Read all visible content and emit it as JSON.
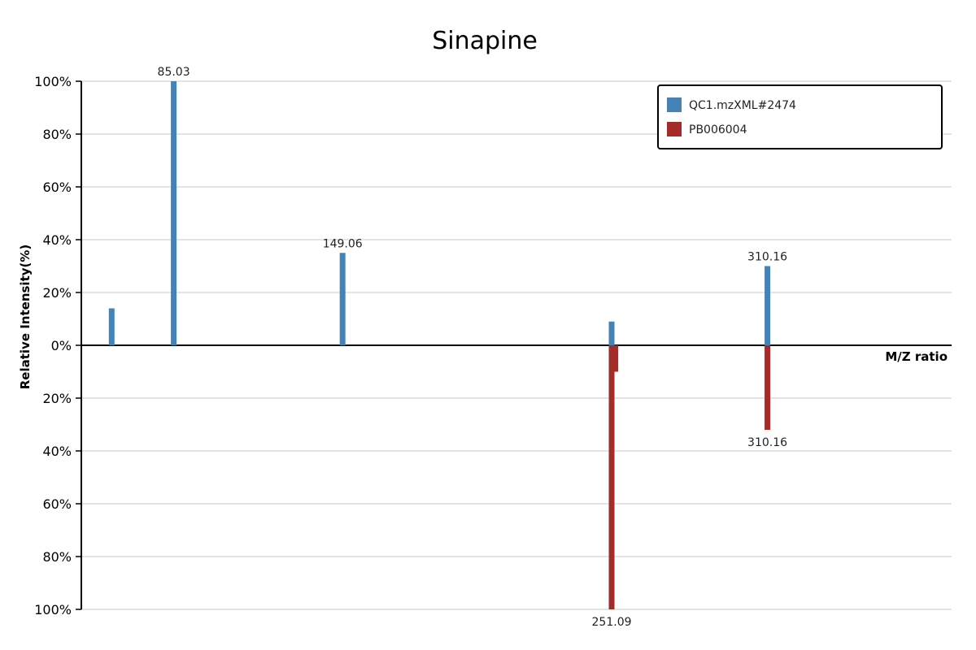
{
  "chart_data": {
    "type": "bar",
    "title": "Sinapine",
    "xlabel": "M/Z ratio",
    "ylabel": "Relative Intensity(%)",
    "ylim": [
      -100,
      100
    ],
    "yticks": [
      100,
      80,
      60,
      40,
      20,
      0,
      -20,
      -40,
      -60,
      -80,
      -100
    ],
    "ytick_labels": [
      "100%",
      "80%",
      "60%",
      "40%",
      "20%",
      "0%",
      "20%",
      "40%",
      "60%",
      "80%",
      "100%"
    ],
    "xlim": [
      50,
      380
    ],
    "grid": true,
    "legend_position": "top-right",
    "series": [
      {
        "name": "QC1.mzXML#2474",
        "color": "#4682b4",
        "direction": "up",
        "peaks": [
          {
            "mz": 61.5,
            "intensity": 14,
            "label": ""
          },
          {
            "mz": 85.03,
            "intensity": 100,
            "label": "85.03"
          },
          {
            "mz": 149.06,
            "intensity": 35,
            "label": "149.06"
          },
          {
            "mz": 251.09,
            "intensity": 9,
            "label": ""
          },
          {
            "mz": 310.16,
            "intensity": 30,
            "label": "310.16"
          }
        ]
      },
      {
        "name": "PB006004",
        "color": "#a52a2a",
        "direction": "down",
        "peaks": [
          {
            "mz": 251.09,
            "intensity": 100,
            "label": "251.09"
          },
          {
            "mz": 252.5,
            "intensity": 10,
            "label": ""
          },
          {
            "mz": 310.16,
            "intensity": 32,
            "label": "310.16"
          }
        ]
      }
    ]
  }
}
